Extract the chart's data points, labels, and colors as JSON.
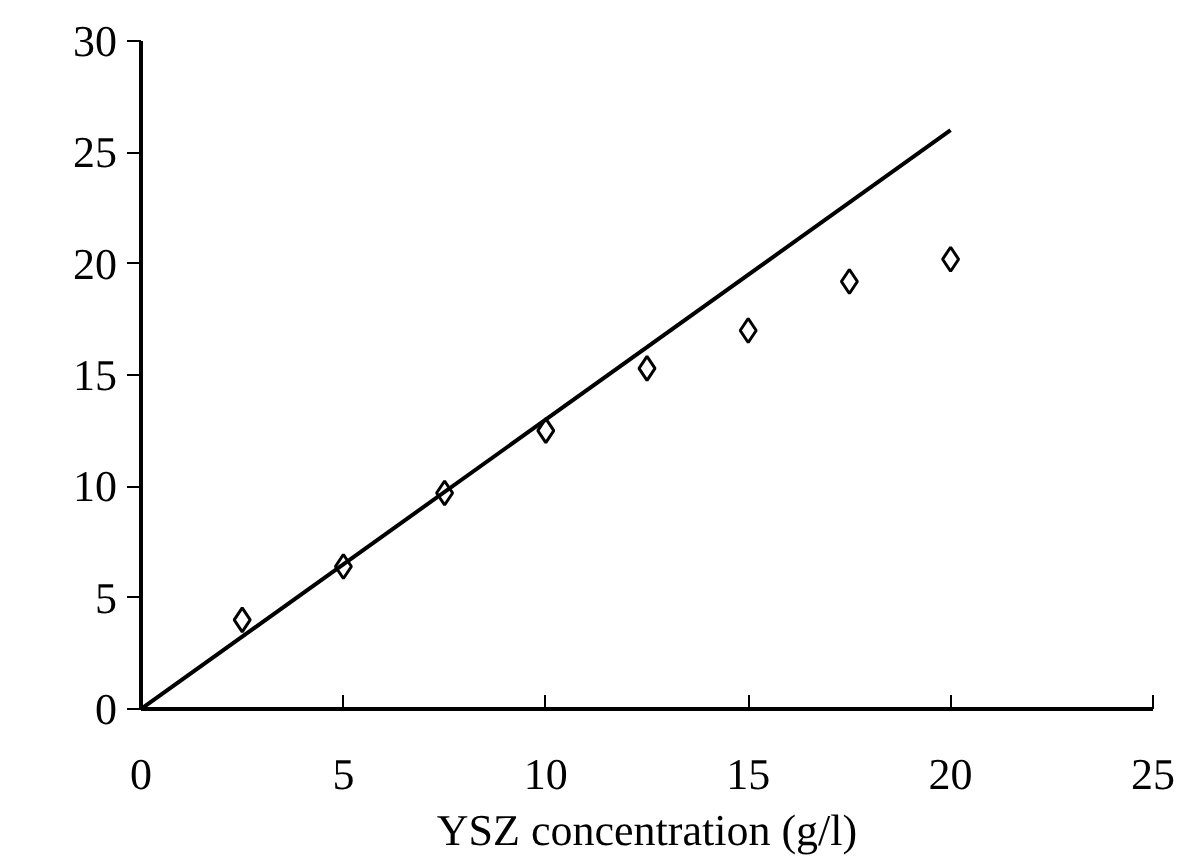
{
  "chart_data": {
    "type": "scatter",
    "xlabel": "YSZ concentration (g/l)",
    "xlim": [
      0,
      25
    ],
    "ylim": [
      0,
      30
    ],
    "xticks": [
      0,
      5,
      10,
      15,
      20,
      25
    ],
    "yticks": [
      0,
      5,
      10,
      15,
      20,
      25,
      30
    ],
    "grid": false,
    "series": [
      {
        "color": "#000000",
        "marker": "diamond",
        "x": [
          2.5,
          5,
          7.5,
          10,
          12.5,
          15,
          17.5,
          20
        ],
        "values": [
          4.0,
          6.4,
          9.7,
          12.5,
          15.3,
          17.0,
          19.2,
          20.2
        ]
      },
      {
        "type": "line",
        "color": "#000000",
        "marker": "none",
        "x": [
          0,
          20
        ],
        "values": [
          0,
          26
        ],
        "line_style": "solid"
      }
    ]
  }
}
